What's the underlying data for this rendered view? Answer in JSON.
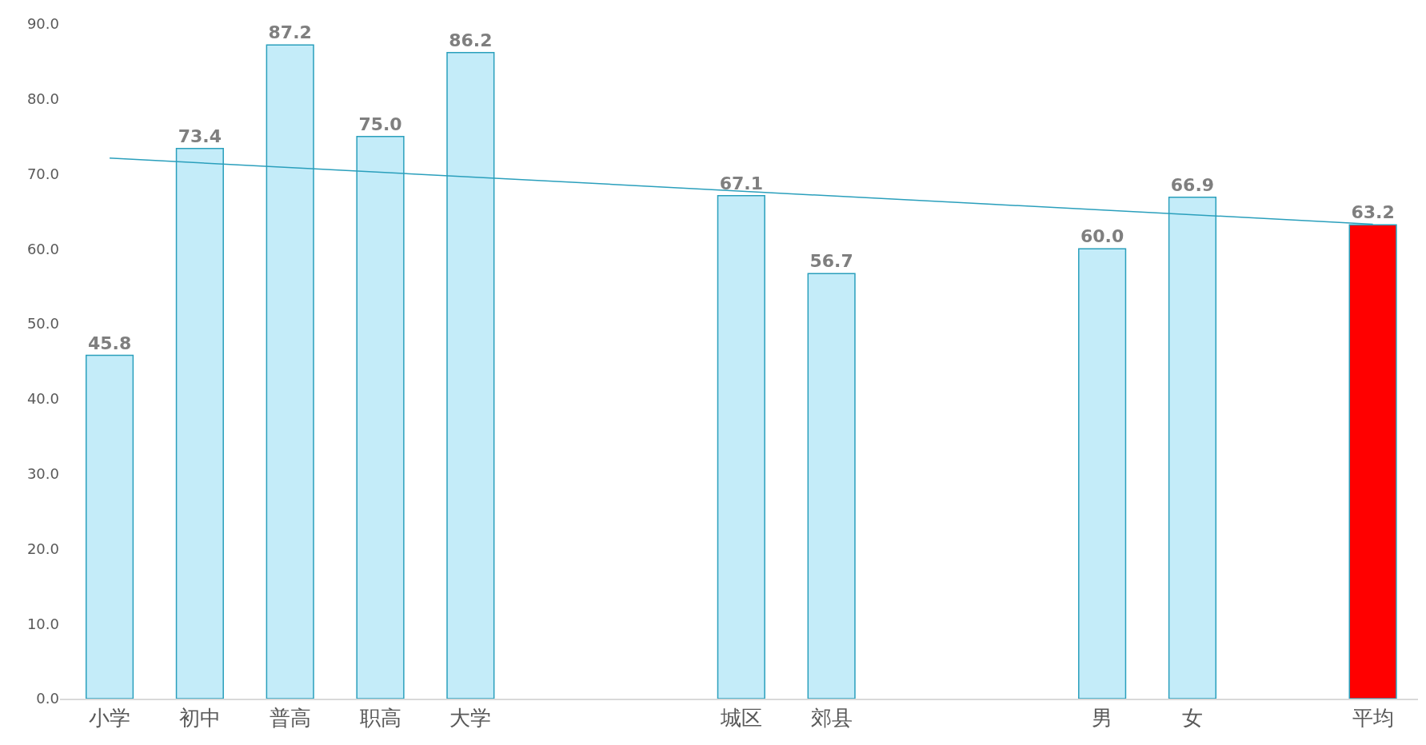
{
  "chart_data": {
    "type": "bar",
    "categories": [
      "小学",
      "初中",
      "普高",
      "职高",
      "大学",
      null,
      null,
      "城区",
      "郊县",
      null,
      null,
      "男",
      "女",
      null,
      "平均"
    ],
    "series": [
      {
        "values": [
          45.8,
          73.4,
          87.2,
          75.0,
          86.2,
          null,
          null,
          67.1,
          56.7,
          null,
          null,
          60.0,
          66.9,
          null,
          63.2
        ],
        "colors": [
          "#c4ecf9",
          "#c4ecf9",
          "#c4ecf9",
          "#c4ecf9",
          "#c4ecf9",
          null,
          null,
          "#c4ecf9",
          "#c4ecf9",
          null,
          null,
          "#c4ecf9",
          "#c4ecf9",
          null,
          "#ff0000"
        ],
        "value_labels": [
          "45.8",
          "73.4",
          "87.2",
          "75.0",
          "86.2",
          null,
          null,
          "67.1",
          "56.7",
          null,
          null,
          "60.0",
          "66.9",
          null,
          "63.2"
        ]
      },
      {
        "type": "line",
        "color": "#2a9fbc",
        "values": [
          72.1,
          null,
          null,
          null,
          null,
          null,
          null,
          null,
          null,
          null,
          null,
          null,
          null,
          null,
          63.3
        ]
      }
    ],
    "ylim": [
      0,
      90
    ],
    "yticks": [
      {
        "value": 0,
        "label": "0.0"
      },
      {
        "value": 10,
        "label": "10.0"
      },
      {
        "value": 20,
        "label": "20.0"
      },
      {
        "value": 30,
        "label": "30.0"
      },
      {
        "value": 40,
        "label": "40.0"
      },
      {
        "value": 50,
        "label": "50.0"
      },
      {
        "value": 60,
        "label": "60.0"
      },
      {
        "value": 70,
        "label": "70.0"
      },
      {
        "value": 80,
        "label": "80.0"
      },
      {
        "value": 90,
        "label": "90.0"
      }
    ],
    "marker": "none"
  }
}
